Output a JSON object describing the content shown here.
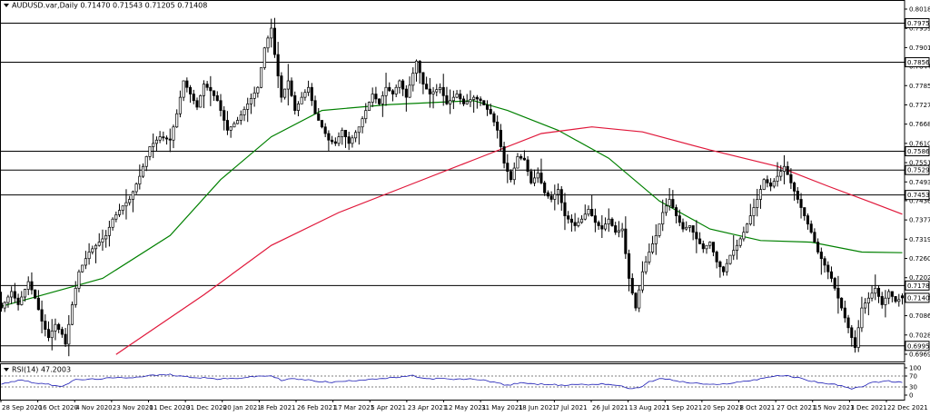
{
  "header": {
    "symbol_line": "AUDUSD.var,Daily  0.71470 0.71543 0.71205 0.71408",
    "rsi_label": "RSI(14) 47.2003"
  },
  "colors": {
    "candles": "#000000",
    "ma_fast": "#008000",
    "ma_slow": "#e0173a",
    "rsi_line": "#1b1bb5",
    "level_lines": "#000000",
    "background": "#ffffff"
  },
  "chart_data": [
    {
      "type": "candlestick",
      "title": "AUDUSD.var,Daily",
      "ylim": [
        0.69695,
        0.8018
      ],
      "y_ticks": [
        "0.80180",
        "0.79595",
        "0.79010",
        "0.78440",
        "0.77855",
        "0.77270",
        "0.76685",
        "0.76100",
        "0.75515",
        "0.74930",
        "0.74360",
        "0.73775",
        "0.73190",
        "0.72605",
        "0.72020",
        "0.71435",
        "0.70866",
        "0.70280",
        "0.69695"
      ],
      "x_ticks": [
        "28 Sep 2020",
        "16 Oct 2020",
        "4 Nov 2020",
        "23 Nov 2020",
        "11 Dec 2020",
        "31 Dec 2020",
        "20 Jan 2021",
        "8 Feb 2021",
        "26 Feb 2021",
        "17 Mar 2021",
        "5 Apr 2021",
        "23 Apr 2021",
        "12 May 2021",
        "31 May 2021",
        "18 Jun 2021",
        "7 Jul 2021",
        "26 Jul 2021",
        "13 Aug 2021",
        "1 Sep 2021",
        "20 Sep 2021",
        "8 Oct 2021",
        "27 Oct 2021",
        "15 Nov 2021",
        "3 Dec 2021",
        "22 Dec 2021"
      ],
      "last": {
        "open": 0.7147,
        "high": 0.71543,
        "low": 0.71205,
        "close": 0.71408,
        "label": "0.71408"
      },
      "horizontal_levels": [
        {
          "value": 0.79751,
          "label": "0.79751"
        },
        {
          "value": 0.78565,
          "label": "0.78565"
        },
        {
          "value": 0.75861,
          "label": "0.75861"
        },
        {
          "value": 0.75291,
          "label": "0.75291"
        },
        {
          "value": 0.74533,
          "label": "0.74533"
        },
        {
          "value": 0.71783,
          "label": "0.71783"
        },
        {
          "value": 0.6995,
          "label": "0.69950"
        }
      ],
      "price_path": [
        [
          0,
          0.711
        ],
        [
          3,
          0.716
        ],
        [
          5,
          0.712
        ],
        [
          8,
          0.719
        ],
        [
          10,
          0.714
        ],
        [
          12,
          0.707
        ],
        [
          14,
          0.702
        ],
        [
          16,
          0.706
        ],
        [
          18,
          0.703
        ],
        [
          19,
          0.7
        ],
        [
          21,
          0.712
        ],
        [
          23,
          0.722
        ],
        [
          26,
          0.728
        ],
        [
          28,
          0.73
        ],
        [
          31,
          0.733
        ],
        [
          33,
          0.738
        ],
        [
          36,
          0.742
        ],
        [
          38,
          0.744
        ],
        [
          41,
          0.751
        ],
        [
          44,
          0.76
        ],
        [
          47,
          0.763
        ],
        [
          50,
          0.762
        ],
        [
          52,
          0.77
        ],
        [
          54,
          0.78
        ],
        [
          56,
          0.776
        ],
        [
          58,
          0.772
        ],
        [
          60,
          0.779
        ],
        [
          62,
          0.777
        ],
        [
          64,
          0.774
        ],
        [
          67,
          0.765
        ],
        [
          70,
          0.768
        ],
        [
          73,
          0.773
        ],
        [
          76,
          0.778
        ],
        [
          78,
          0.79
        ],
        [
          80,
          0.796
        ],
        [
          81,
          0.788
        ],
        [
          83,
          0.775
        ],
        [
          85,
          0.78
        ],
        [
          87,
          0.771
        ],
        [
          89,
          0.775
        ],
        [
          91,
          0.778
        ],
        [
          93,
          0.77
        ],
        [
          95,
          0.766
        ],
        [
          97,
          0.762
        ],
        [
          99,
          0.761
        ],
        [
          101,
          0.765
        ],
        [
          103,
          0.761
        ],
        [
          106,
          0.766
        ],
        [
          108,
          0.771
        ],
        [
          110,
          0.776
        ],
        [
          112,
          0.773
        ],
        [
          114,
          0.778
        ],
        [
          116,
          0.776
        ],
        [
          118,
          0.78
        ],
        [
          120,
          0.775
        ],
        [
          123,
          0.786
        ],
        [
          125,
          0.779
        ],
        [
          127,
          0.776
        ],
        [
          130,
          0.778
        ],
        [
          132,
          0.773
        ],
        [
          135,
          0.776
        ],
        [
          137,
          0.773
        ],
        [
          140,
          0.775
        ],
        [
          142,
          0.774
        ],
        [
          145,
          0.77
        ],
        [
          147,
          0.765
        ],
        [
          149,
          0.755
        ],
        [
          151,
          0.75
        ],
        [
          153,
          0.757
        ],
        [
          155,
          0.756
        ],
        [
          157,
          0.749
        ],
        [
          159,
          0.752
        ],
        [
          161,
          0.746
        ],
        [
          163,
          0.744
        ],
        [
          165,
          0.747
        ],
        [
          167,
          0.739
        ],
        [
          170,
          0.736
        ],
        [
          172,
          0.738
        ],
        [
          174,
          0.741
        ],
        [
          176,
          0.737
        ],
        [
          178,
          0.735
        ],
        [
          180,
          0.738
        ],
        [
          182,
          0.734
        ],
        [
          184,
          0.735
        ],
        [
          186,
          0.72
        ],
        [
          188,
          0.711
        ],
        [
          190,
          0.722
        ],
        [
          192,
          0.728
        ],
        [
          194,
          0.733
        ],
        [
          196,
          0.74
        ],
        [
          198,
          0.744
        ],
        [
          200,
          0.739
        ],
        [
          202,
          0.735
        ],
        [
          204,
          0.736
        ],
        [
          206,
          0.732
        ],
        [
          208,
          0.729
        ],
        [
          210,
          0.731
        ],
        [
          212,
          0.725
        ],
        [
          214,
          0.722
        ],
        [
          216,
          0.727
        ],
        [
          218,
          0.73
        ],
        [
          220,
          0.734
        ],
        [
          222,
          0.739
        ],
        [
          224,
          0.744
        ],
        [
          226,
          0.75
        ],
        [
          228,
          0.748
        ],
        [
          230,
          0.751
        ],
        [
          232,
          0.754
        ],
        [
          234,
          0.749
        ],
        [
          236,
          0.744
        ],
        [
          238,
          0.739
        ],
        [
          240,
          0.734
        ],
        [
          242,
          0.728
        ],
        [
          244,
          0.724
        ],
        [
          246,
          0.72
        ],
        [
          248,
          0.714
        ],
        [
          250,
          0.708
        ],
        [
          252,
          0.702
        ],
        [
          253,
          0.699
        ],
        [
          255,
          0.711
        ],
        [
          257,
          0.714
        ],
        [
          259,
          0.717
        ],
        [
          261,
          0.712
        ],
        [
          263,
          0.716
        ],
        [
          265,
          0.713
        ],
        [
          267,
          0.7141
        ]
      ],
      "moving_averages": [
        {
          "name": "MA fast",
          "color": "#008000",
          "points": [
            [
              0,
              0.7115
            ],
            [
              30,
              0.72
            ],
            [
              50,
              0.733
            ],
            [
              65,
              0.75
            ],
            [
              80,
              0.763
            ],
            [
              95,
              0.771
            ],
            [
              115,
              0.7728
            ],
            [
              140,
              0.774
            ],
            [
              150,
              0.771
            ],
            [
              165,
              0.765
            ],
            [
              180,
              0.7565
            ],
            [
              195,
              0.7435
            ],
            [
              210,
              0.735
            ],
            [
              225,
              0.7315
            ],
            [
              240,
              0.731
            ],
            [
              255,
              0.728
            ],
            [
              267,
              0.7278
            ]
          ]
        },
        {
          "name": "MA slow",
          "color": "#e0173a",
          "points": [
            [
              34,
              0.6969
            ],
            [
              60,
              0.715
            ],
            [
              80,
              0.73
            ],
            [
              100,
              0.74
            ],
            [
              120,
              0.748
            ],
            [
              140,
              0.756
            ],
            [
              160,
              0.764
            ],
            [
              175,
              0.766
            ],
            [
              190,
              0.7645
            ],
            [
              210,
              0.759
            ],
            [
              230,
              0.754
            ],
            [
              245,
              0.748
            ],
            [
              258,
              0.743
            ],
            [
              267,
              0.7395
            ]
          ]
        }
      ]
    },
    {
      "type": "line",
      "title": "RSI(14) 47.2003",
      "ylim": [
        0,
        100
      ],
      "y_ticks": [
        "100",
        "70",
        "30",
        "0"
      ],
      "levels": [
        70,
        30
      ],
      "series": [
        {
          "values": [
            [
              0,
              42
            ],
            [
              6,
              56
            ],
            [
              10,
              45
            ],
            [
              14,
              39
            ],
            [
              18,
              33
            ],
            [
              22,
              56
            ],
            [
              27,
              58
            ],
            [
              32,
              62
            ],
            [
              36,
              64
            ],
            [
              40,
              66
            ],
            [
              44,
              72
            ],
            [
              48,
              74
            ],
            [
              50,
              75
            ],
            [
              52,
              72
            ],
            [
              56,
              66
            ],
            [
              60,
              64
            ],
            [
              64,
              59
            ],
            [
              68,
              60
            ],
            [
              72,
              64
            ],
            [
              76,
              69
            ],
            [
              80,
              71
            ],
            [
              83,
              55
            ],
            [
              86,
              60
            ],
            [
              90,
              56
            ],
            [
              94,
              51
            ],
            [
              98,
              47
            ],
            [
              102,
              51
            ],
            [
              106,
              55
            ],
            [
              110,
              60
            ],
            [
              114,
              61
            ],
            [
              118,
              66
            ],
            [
              122,
              71
            ],
            [
              126,
              59
            ],
            [
              130,
              61
            ],
            [
              134,
              57
            ],
            [
              138,
              59
            ],
            [
              142,
              57
            ],
            [
              146,
              48
            ],
            [
              150,
              35
            ],
            [
              154,
              47
            ],
            [
              158,
              39
            ],
            [
              162,
              41
            ],
            [
              166,
              35
            ],
            [
              170,
              40
            ],
            [
              174,
              38
            ],
            [
              178,
              42
            ],
            [
              182,
              37
            ],
            [
              186,
              25
            ],
            [
              189,
              27
            ],
            [
              192,
              48
            ],
            [
              196,
              62
            ],
            [
              200,
              52
            ],
            [
              204,
              45
            ],
            [
              208,
              41
            ],
            [
              212,
              37
            ],
            [
              216,
              44
            ],
            [
              220,
              50
            ],
            [
              224,
              58
            ],
            [
              228,
              68
            ],
            [
              232,
              72
            ],
            [
              236,
              64
            ],
            [
              240,
              52
            ],
            [
              244,
              43
            ],
            [
              248,
              37
            ],
            [
              252,
              22
            ],
            [
              254,
              28
            ],
            [
              258,
              45
            ],
            [
              262,
              52
            ],
            [
              266,
              47
            ]
          ]
        }
      ]
    }
  ]
}
